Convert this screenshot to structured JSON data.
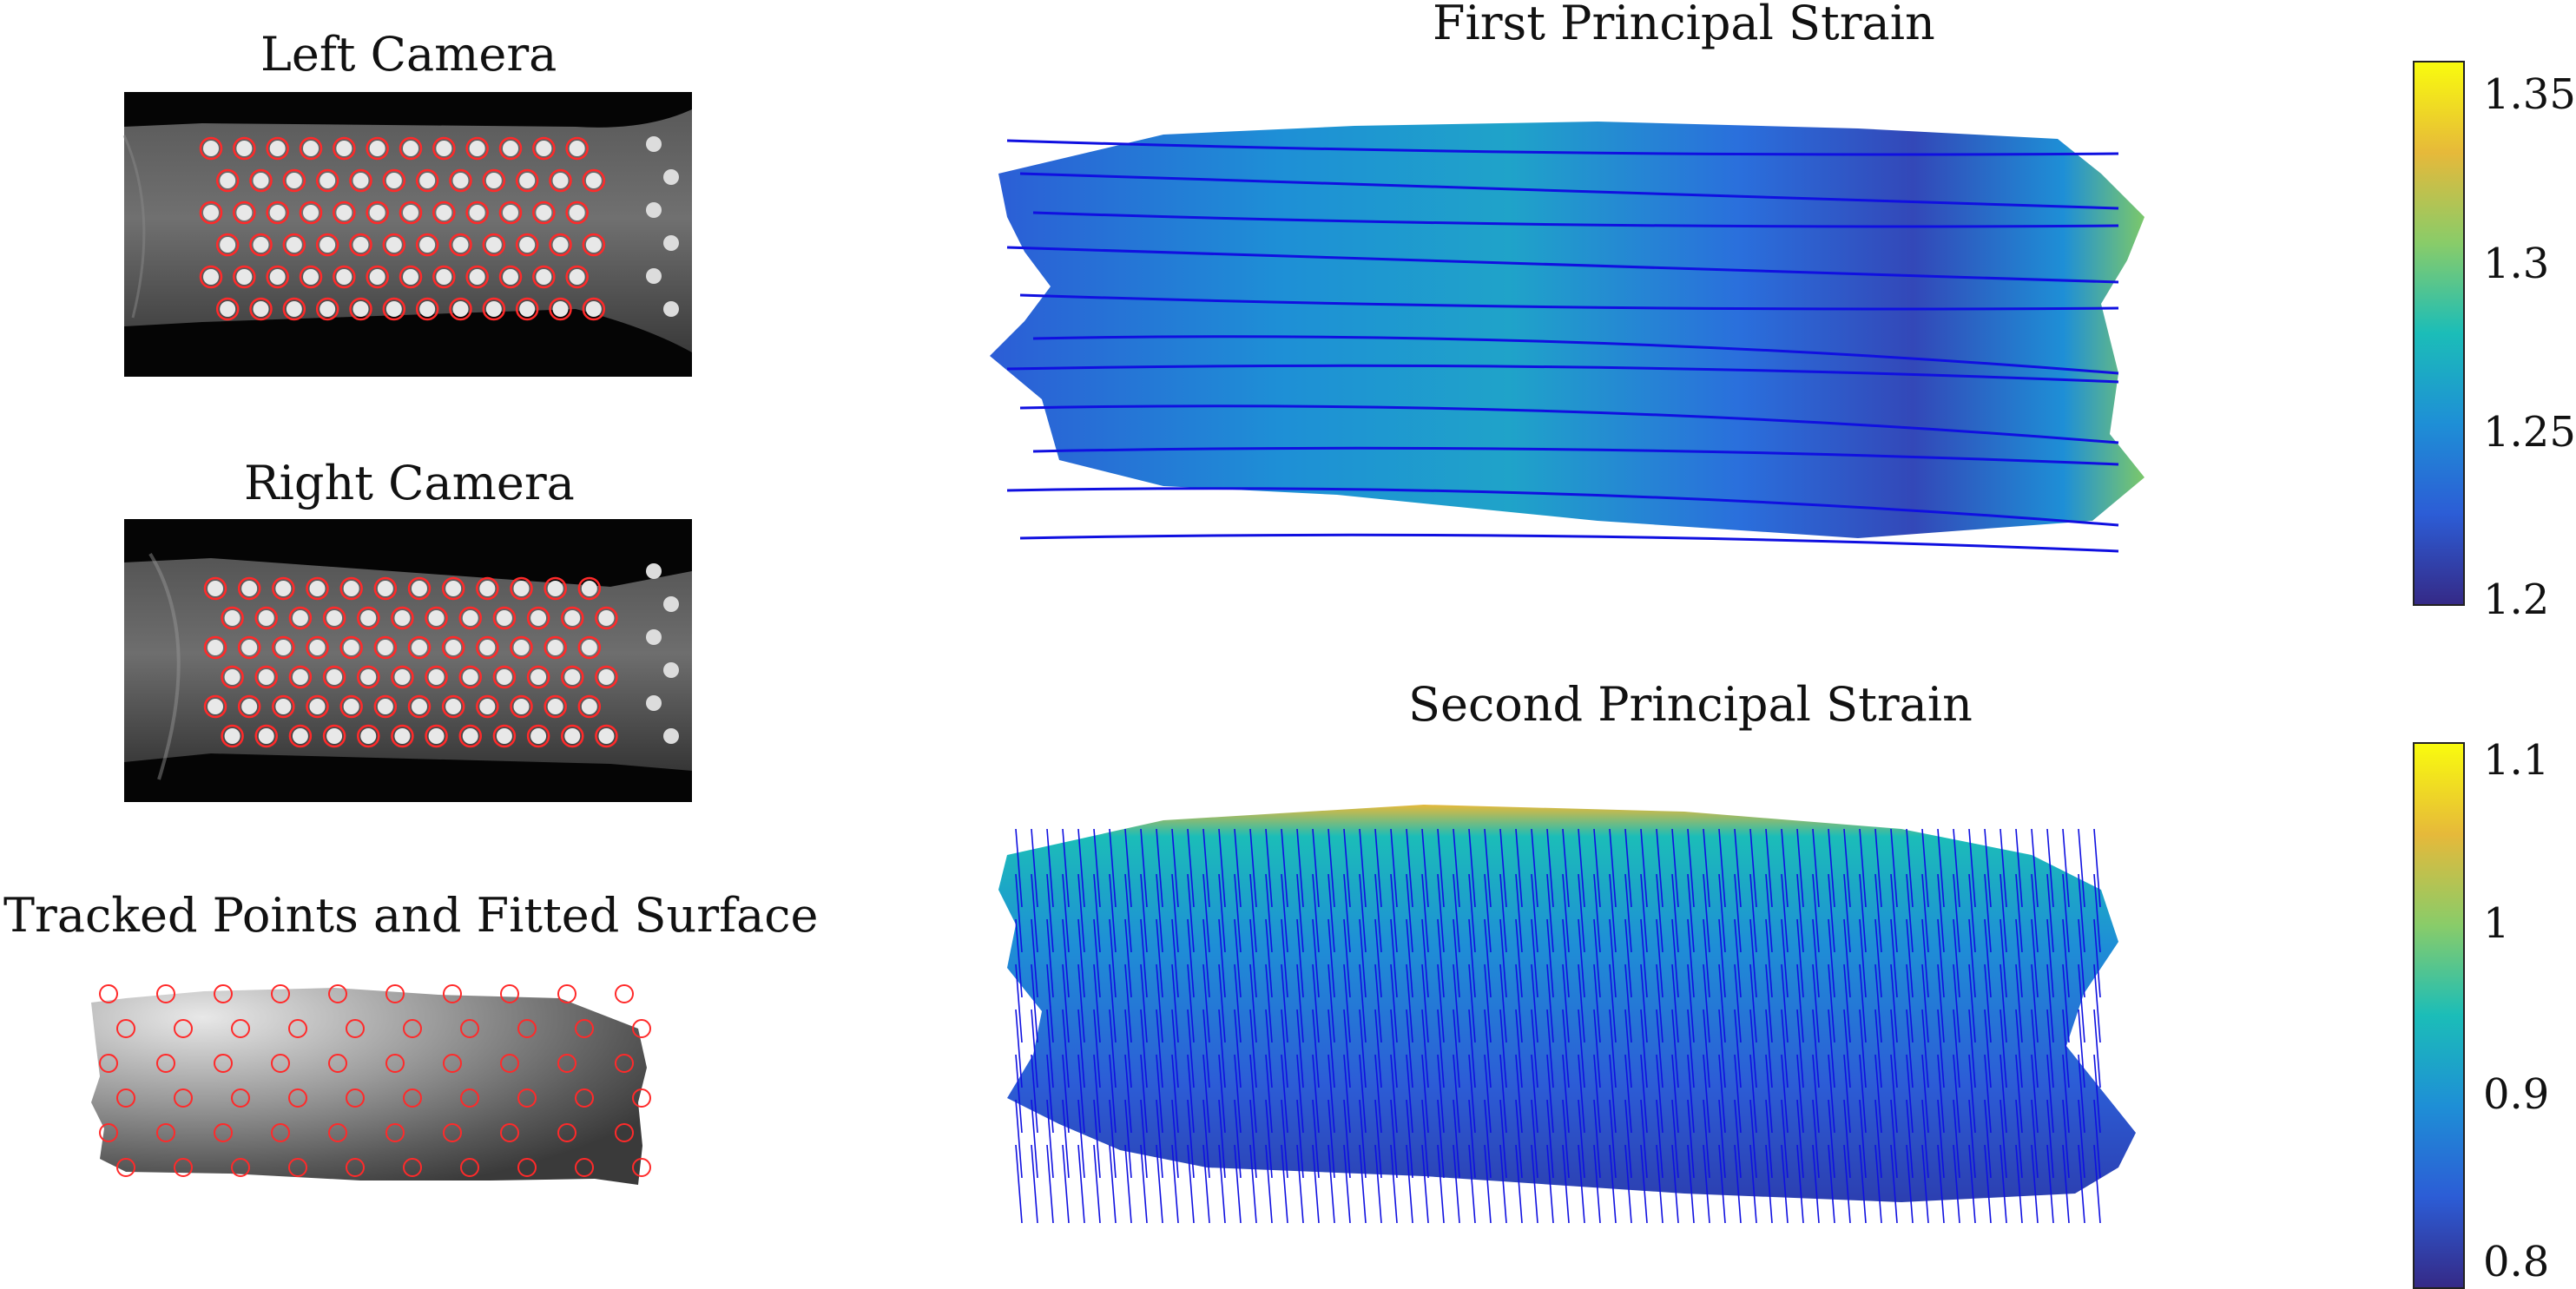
{
  "panels": {
    "left_camera": {
      "title": "Left Camera"
    },
    "right_camera": {
      "title": "Right Camera"
    },
    "tracked": {
      "title": "Tracked Points and Fitted Surface"
    },
    "first_strain": {
      "title": "First Principal Strain",
      "colorbar": {
        "min": 1.2,
        "max": 1.36,
        "ticks": [
          "1.35",
          "1.3",
          "1.25",
          "1.2"
        ]
      }
    },
    "second_strain": {
      "title": "Second Principal Strain",
      "colorbar": {
        "min": 0.78,
        "max": 1.11,
        "ticks": [
          "1.1",
          "1",
          "0.9",
          "0.8"
        ]
      }
    }
  },
  "colors": {
    "marker": "#ff2a2a",
    "vector": "#1010e0",
    "parula": [
      "#352a87",
      "#2c5dd6",
      "#1e8fd6",
      "#1bbdb8",
      "#89cc69",
      "#e6b93a",
      "#f9fb0e"
    ]
  }
}
